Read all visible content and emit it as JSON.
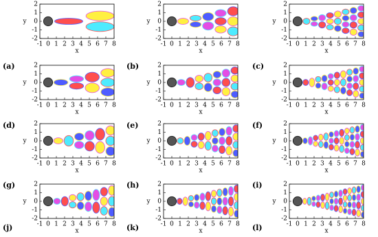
{
  "axes": {
    "xlabel": "x",
    "ylabel": "y",
    "xticks": [
      -1,
      0,
      1,
      2,
      3,
      4,
      5,
      6,
      7,
      8
    ],
    "yticks": [
      2,
      1,
      0,
      -1,
      -2
    ]
  },
  "panels": [
    {
      "label": "(a)"
    },
    {
      "label": "(b)"
    },
    {
      "label": "(c)"
    },
    {
      "label": "(d)"
    },
    {
      "label": "(e)"
    },
    {
      "label": "(f)"
    },
    {
      "label": "(g)"
    },
    {
      "label": "(h)"
    },
    {
      "label": "(i)"
    },
    {
      "label": "(j)"
    },
    {
      "label": "(k)"
    },
    {
      "label": "(l)"
    }
  ]
}
